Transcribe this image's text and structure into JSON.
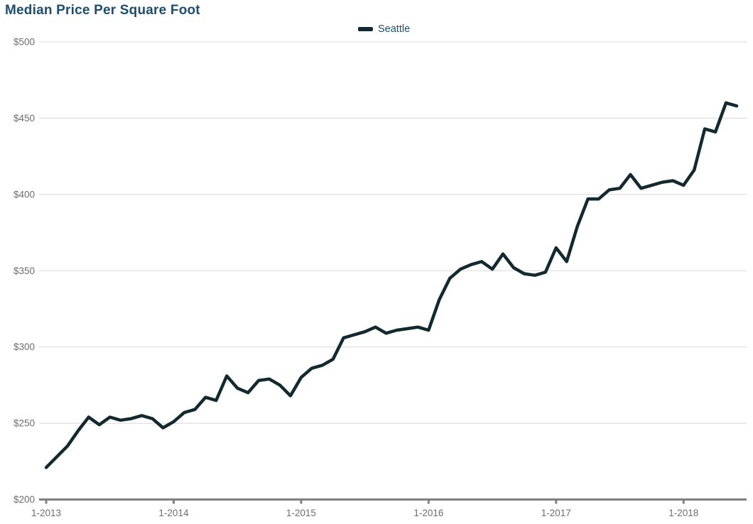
{
  "chart_data": {
    "type": "line",
    "title": "Median Price Per Square Foot",
    "xlabel": "",
    "ylabel": "",
    "ylim": [
      200,
      500
    ],
    "grid": true,
    "legend_position": "top-center",
    "legend": [
      "Seattle"
    ],
    "y_ticks": [
      {
        "label": "$200",
        "value": 200
      },
      {
        "label": "$250",
        "value": 250
      },
      {
        "label": "$300",
        "value": 300
      },
      {
        "label": "$350",
        "value": 350
      },
      {
        "label": "$400",
        "value": 400
      },
      {
        "label": "$450",
        "value": 450
      },
      {
        "label": "$500",
        "value": 500
      }
    ],
    "x_ticks": [
      {
        "label": "1-2013",
        "month_index": 0
      },
      {
        "label": "1-2014",
        "month_index": 12
      },
      {
        "label": "1-2015",
        "month_index": 24
      },
      {
        "label": "1-2016",
        "month_index": 36
      },
      {
        "label": "1-2017",
        "month_index": 48
      },
      {
        "label": "1-2018",
        "month_index": 60
      }
    ],
    "x": [
      "1-2013",
      "2-2013",
      "3-2013",
      "4-2013",
      "5-2013",
      "6-2013",
      "7-2013",
      "8-2013",
      "9-2013",
      "10-2013",
      "11-2013",
      "12-2013",
      "1-2014",
      "2-2014",
      "3-2014",
      "4-2014",
      "5-2014",
      "6-2014",
      "7-2014",
      "8-2014",
      "9-2014",
      "10-2014",
      "11-2014",
      "12-2014",
      "1-2015",
      "2-2015",
      "3-2015",
      "4-2015",
      "5-2015",
      "6-2015",
      "7-2015",
      "8-2015",
      "9-2015",
      "10-2015",
      "11-2015",
      "12-2015",
      "1-2016",
      "2-2016",
      "3-2016",
      "4-2016",
      "5-2016",
      "6-2016",
      "7-2016",
      "8-2016",
      "9-2016",
      "10-2016",
      "11-2016",
      "12-2016",
      "1-2017",
      "2-2017",
      "3-2017",
      "4-2017",
      "5-2017",
      "6-2017",
      "7-2017",
      "8-2017",
      "9-2017",
      "10-2017",
      "11-2017",
      "12-2017",
      "1-2018",
      "2-2018",
      "3-2018",
      "4-2018",
      "5-2018",
      "6-2018"
    ],
    "series": [
      {
        "name": "Seattle",
        "values": [
          221,
          228,
          235,
          245,
          254,
          249,
          254,
          252,
          253,
          255,
          253,
          247,
          251,
          257,
          259,
          267,
          265,
          281,
          273,
          270,
          278,
          279,
          275,
          268,
          280,
          286,
          288,
          292,
          306,
          308,
          310,
          313,
          309,
          311,
          312,
          313,
          311,
          331,
          345,
          351,
          354,
          356,
          351,
          361,
          352,
          348,
          347,
          349,
          365,
          356,
          379,
          397,
          397,
          403,
          404,
          413,
          404,
          406,
          408,
          409,
          406,
          416,
          443,
          441,
          460,
          458
        ]
      }
    ],
    "colors": {
      "line": "#132930",
      "title": "#1d4e70",
      "legend_text": "#1d4e70",
      "axis_label": "#6e6e6e",
      "gridline": "#d8d8d8",
      "axis_line": "#808080"
    }
  }
}
